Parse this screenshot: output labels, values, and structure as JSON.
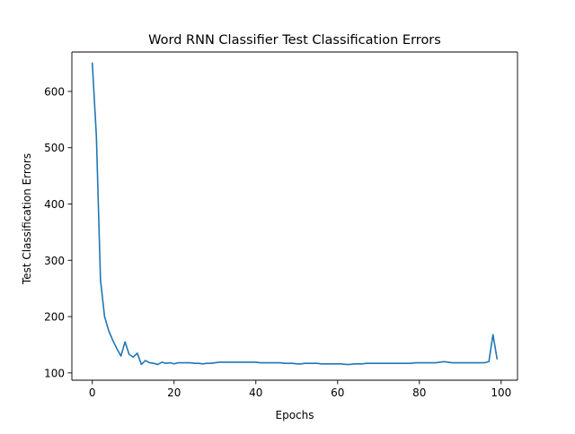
{
  "chart_data": {
    "type": "line",
    "title": "Word RNN Classifier Test Classification Errors",
    "xlabel": "Epochs",
    "ylabel": "Test Classification Errors",
    "xlim": [
      -5,
      104
    ],
    "ylim": [
      87,
      670
    ],
    "xticks": [
      0,
      20,
      40,
      60,
      80,
      100
    ],
    "yticks": [
      100,
      200,
      300,
      400,
      500,
      600
    ],
    "grid": false,
    "series": [
      {
        "color": "#1f77b4",
        "x": [
          0,
          1,
          2,
          3,
          4,
          5,
          6,
          7,
          8,
          9,
          10,
          11,
          12,
          13,
          14,
          15,
          16,
          17,
          18,
          19,
          20,
          21,
          22,
          23,
          24,
          25,
          26,
          27,
          28,
          29,
          30,
          31,
          32,
          33,
          34,
          35,
          36,
          37,
          38,
          39,
          40,
          41,
          42,
          43,
          44,
          45,
          46,
          47,
          48,
          49,
          50,
          51,
          52,
          53,
          54,
          55,
          56,
          57,
          58,
          59,
          60,
          61,
          62,
          63,
          64,
          65,
          66,
          67,
          68,
          69,
          70,
          71,
          72,
          73,
          74,
          75,
          76,
          77,
          78,
          79,
          80,
          81,
          82,
          83,
          84,
          85,
          86,
          87,
          88,
          89,
          90,
          91,
          92,
          93,
          94,
          95,
          96,
          97,
          98,
          99
        ],
        "y": [
          650,
          520,
          265,
          200,
          175,
          158,
          143,
          130,
          155,
          133,
          128,
          135,
          115,
          122,
          118,
          117,
          115,
          119,
          117,
          118,
          116,
          118,
          118,
          118,
          118,
          117,
          117,
          116,
          117,
          117,
          118,
          119,
          119,
          119,
          119,
          119,
          119,
          119,
          119,
          119,
          119,
          118,
          118,
          118,
          118,
          118,
          118,
          117,
          117,
          117,
          116,
          116,
          117,
          117,
          117,
          117,
          116,
          116,
          116,
          116,
          116,
          116,
          115,
          115,
          116,
          116,
          116,
          117,
          117,
          117,
          117,
          117,
          117,
          117,
          117,
          117,
          117,
          117,
          117,
          118,
          118,
          118,
          118,
          118,
          118,
          119,
          120,
          119,
          118,
          118,
          118,
          118,
          118,
          118,
          118,
          118,
          118,
          120,
          168,
          125
        ]
      }
    ]
  }
}
